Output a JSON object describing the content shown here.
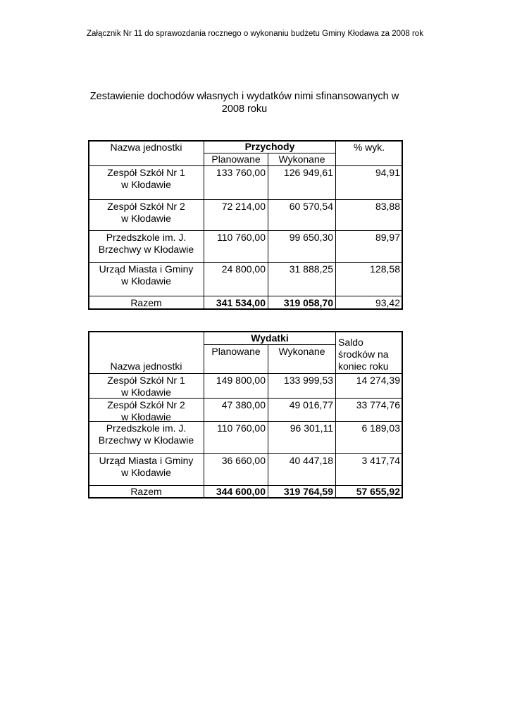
{
  "header": {
    "text": "Załącznik Nr 11 do sprawozdania rocznego o wykonaniu budżetu Gminy Kłodawa za 2008 rok"
  },
  "title": {
    "lines": [
      "Zestawienie dochodów własnych i wydatków nimi sfinansowanych w",
      "2008 roku"
    ]
  },
  "table1": {
    "columns": {
      "name": "Nazwa jednostki",
      "group": "Przychody",
      "planned": "Planowane",
      "executed": "Wykonane",
      "percent": "% wyk."
    },
    "rows": [
      {
        "name": [
          "Zespół  Szkół Nr 1",
          "w Kłodawie"
        ],
        "planned": "133 760,00",
        "executed": "126 949,61",
        "percent": "94,91"
      },
      {
        "name": [
          "Zespół  Szkół Nr 2",
          "w Kłodawie"
        ],
        "planned": "72 214,00",
        "executed": "60 570,54",
        "percent": "83,88"
      },
      {
        "name": [
          "Przedszkole im. J.",
          "Brzechwy w Kłodawie"
        ],
        "planned": "110 760,00",
        "executed": "99 650,30",
        "percent": "89,97"
      },
      {
        "name": [
          "Urząd Miasta i Gminy",
          "w Kłodawie"
        ],
        "planned": "24 800,00",
        "executed": "31 888,25",
        "percent": "128,58"
      }
    ],
    "total": {
      "label": "Razem",
      "planned": "341 534,00",
      "executed": "319 058,70",
      "percent": "93,42"
    }
  },
  "table2": {
    "columns": {
      "name": "Nazwa jednostki",
      "group": "Wydatki",
      "planned": "Planowane",
      "executed": "Wykonane",
      "balance": [
        "Saldo",
        "środków na",
        "koniec roku"
      ]
    },
    "rows": [
      {
        "name": [
          "Zespół  Szkół Nr 1",
          "w Kłodawie"
        ],
        "planned": "149 800,00",
        "executed": "133 999,53",
        "balance": "14 274,39"
      },
      {
        "name": [
          "Zespół  Szkół Nr 2",
          "w Kłodawie"
        ],
        "planned": "47 380,00",
        "executed": "49 016,77",
        "balance": "33 774,76"
      },
      {
        "name": [
          "Przedszkole im. J.",
          "Brzechwy w Kłodawie"
        ],
        "planned": "110 760,00",
        "executed": "96 301,11",
        "balance": "6 189,03"
      },
      {
        "name": [
          "Urząd Miasta i Gminy",
          "w Kłodawie"
        ],
        "planned": "36 660,00",
        "executed": "40 447,18",
        "balance": "3 417,74"
      }
    ],
    "total": {
      "label": "Razem",
      "planned": "344 600,00",
      "executed": "319 764,59",
      "balance": "57 655,92"
    }
  }
}
